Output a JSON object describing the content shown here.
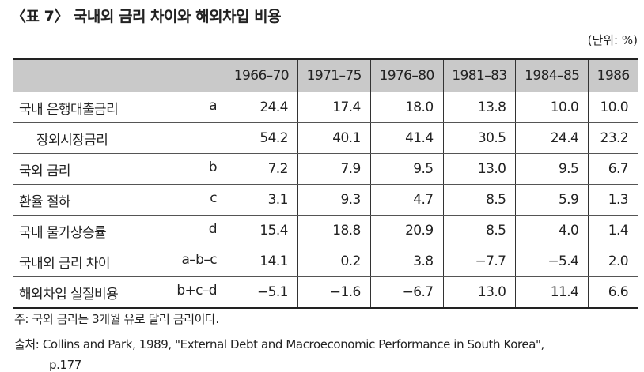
{
  "header": {
    "title": "〈표 7〉 국내외 금리 차이와 해외차입 비용",
    "unit": "(단위: %)"
  },
  "table": {
    "columns": [
      "1966–70",
      "1971–75",
      "1976–80",
      "1981–83",
      "1984–85",
      "1986"
    ],
    "rows": [
      {
        "label": "국내 은행대출금리",
        "code": "a",
        "values": [
          "24.4",
          "17.4",
          "18.0",
          "13.8",
          "10.0",
          "10.0"
        ]
      },
      {
        "label": "장외시장금리",
        "values": [
          "54.2",
          "40.1",
          "41.4",
          "30.5",
          "24.4",
          "23.2"
        ]
      },
      {
        "label": "국외 금리",
        "code": "b",
        "values": [
          "7.2",
          "7.9",
          "9.5",
          "13.0",
          "9.5",
          "6.7"
        ]
      },
      {
        "label": "환율 절하",
        "code": "c",
        "values": [
          "3.1",
          "9.3",
          "4.7",
          "8.5",
          "5.9",
          "1.3"
        ]
      },
      {
        "label": "국내 물가상승률",
        "code": "d",
        "values": [
          "15.4",
          "18.8",
          "20.9",
          "8.5",
          "4.0",
          "1.4"
        ]
      },
      {
        "label": "국내외 금리 차이",
        "code": "a–b–c",
        "values": [
          "14.1",
          "0.2",
          "3.8",
          "−7.7",
          "−5.4",
          "2.0"
        ]
      },
      {
        "label": "해외차입 실질비용",
        "code": "b+c–d",
        "values": [
          "−5.1",
          "−1.6",
          "−6.7",
          "13.0",
          "11.4",
          "6.6"
        ]
      }
    ]
  },
  "notes": [
    "주: 국외 금리는 3개월 유로 달러 금리이다.",
    "출처: Collins and Park, 1989, \"External Debt and Macroeconomic Performance in South Korea\",",
    "p.177"
  ]
}
